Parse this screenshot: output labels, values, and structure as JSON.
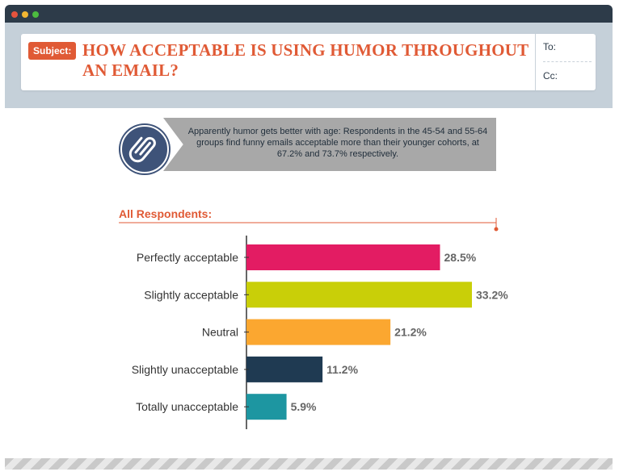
{
  "header": {
    "subject_label": "Subject:",
    "title": "HOW ACCEPTABLE IS USING HUMOR  THROUGHOUT AN EMAIL?",
    "to_label": "To:",
    "cc_label": "Cc:"
  },
  "note": {
    "text": "Apparently humor gets better with age: Respondents in the 45-54 and 55-64 groups find funny emails acceptable more than their younger cohorts, at 67.2% and 73.7% respectively."
  },
  "colors": {
    "titlebar": "#2d3b49",
    "dot_red": "#e5533d",
    "dot_yellow": "#f2b632",
    "dot_green": "#4cbb3f",
    "accent": "#e05a35"
  },
  "chart_data": {
    "type": "bar",
    "orientation": "horizontal",
    "title": "All Respondents:",
    "categories": [
      "Perfectly acceptable",
      "Slightly acceptable",
      "Neutral",
      "Slightly unacceptable",
      "Totally unacceptable"
    ],
    "values": [
      28.5,
      33.2,
      21.2,
      11.2,
      5.9
    ],
    "value_labels": [
      "28.5%",
      "33.2%",
      "21.2%",
      "11.2%",
      "5.9%"
    ],
    "colors": [
      "#e31c63",
      "#c9cf08",
      "#fba730",
      "#1f3a52",
      "#1d96a1"
    ],
    "xlim": [
      0,
      35
    ],
    "grid": false,
    "legend": "none"
  }
}
